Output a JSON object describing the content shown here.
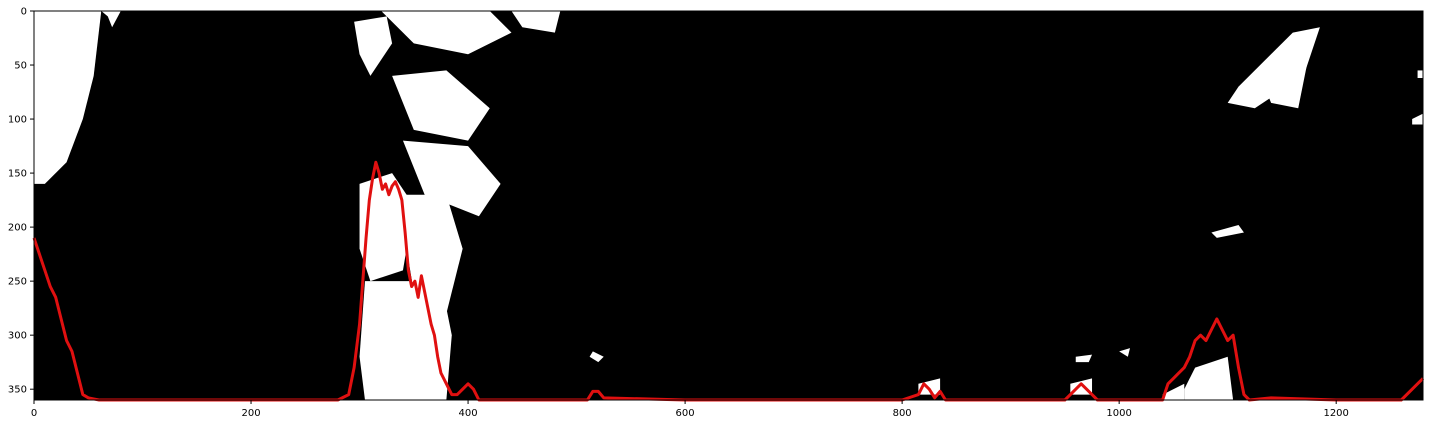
{
  "chart_data": {
    "type": "line",
    "title": "",
    "xlabel": "",
    "ylabel": "",
    "xlim": [
      0,
      1280
    ],
    "ylim": [
      360,
      0
    ],
    "y_axis_inverted": true,
    "background": "binary lane-line mask image (black background, white pixel blobs)",
    "xticks": [
      0,
      200,
      400,
      600,
      800,
      1000,
      1200
    ],
    "yticks": [
      0,
      50,
      100,
      150,
      200,
      250,
      300,
      350
    ],
    "grid": false,
    "legend": "none",
    "colors": {
      "mask_background": "#000000",
      "mask_pixels": "#ffffff",
      "histogram_line": "#e01010"
    },
    "series": [
      {
        "x": [
          0,
          5,
          10,
          15,
          20,
          25,
          30,
          35,
          40,
          45,
          50,
          55,
          60,
          100,
          200,
          280,
          290,
          295,
          300,
          303,
          306,
          309,
          312,
          315,
          318,
          321,
          324,
          327,
          330,
          333,
          336,
          339,
          342,
          345,
          348,
          351,
          354,
          357,
          360,
          363,
          366,
          369,
          372,
          375,
          380,
          385,
          390,
          395,
          400,
          405,
          410,
          415,
          450,
          480,
          510,
          515,
          520,
          525,
          600,
          700,
          800,
          815,
          820,
          825,
          830,
          835,
          840,
          900,
          950,
          960,
          965,
          970,
          975,
          980,
          985,
          1000,
          1040,
          1045,
          1050,
          1055,
          1060,
          1065,
          1070,
          1075,
          1080,
          1085,
          1090,
          1095,
          1100,
          1105,
          1110,
          1115,
          1120,
          1140,
          1200,
          1260,
          1270,
          1280
        ],
        "y": [
          210,
          225,
          240,
          255,
          265,
          285,
          305,
          315,
          335,
          355,
          358,
          359,
          360,
          360,
          360,
          360,
          355,
          330,
          290,
          250,
          210,
          175,
          155,
          140,
          150,
          165,
          160,
          170,
          162,
          158,
          165,
          175,
          205,
          240,
          255,
          250,
          265,
          245,
          260,
          275,
          290,
          300,
          320,
          335,
          345,
          355,
          355,
          350,
          345,
          350,
          360,
          360,
          360,
          360,
          360,
          352,
          352,
          358,
          360,
          360,
          360,
          355,
          345,
          350,
          358,
          352,
          360,
          360,
          360,
          350,
          345,
          350,
          355,
          360,
          360,
          360,
          360,
          345,
          340,
          335,
          330,
          320,
          305,
          300,
          305,
          295,
          285,
          295,
          305,
          300,
          330,
          355,
          360,
          358,
          360,
          360,
          350,
          340
        ]
      }
    ]
  }
}
